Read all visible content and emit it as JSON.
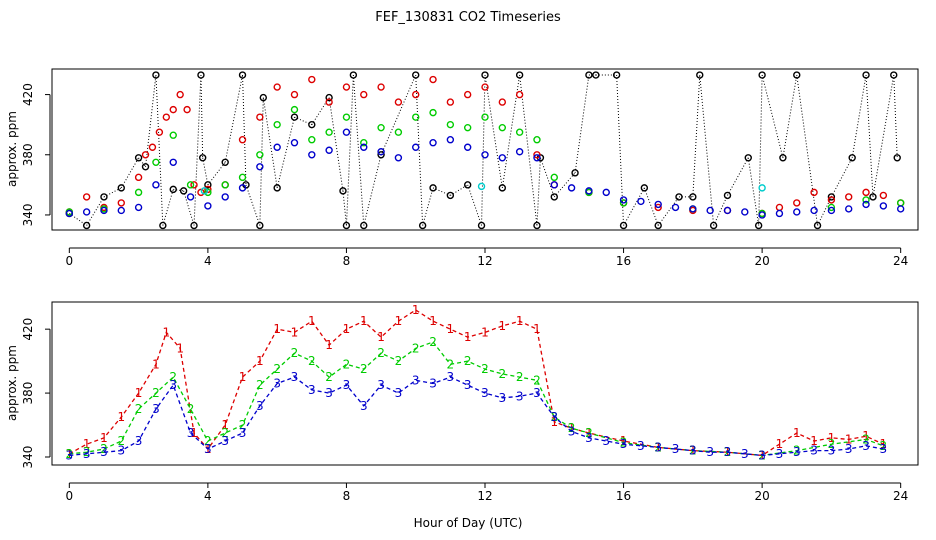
{
  "title": "FEF_130831  CO2 Timeseries",
  "colors": {
    "black": "#000000",
    "red": "#dd0000",
    "green": "#00cc00",
    "blue": "#0000cc",
    "cyan": "#00cccc"
  },
  "chart_data": [
    {
      "type": "scatter",
      "panel": "top",
      "ylabel": "approx. ppm",
      "xlim": [
        -0.5,
        24.5
      ],
      "ylim": [
        330,
        437
      ],
      "xticks": [
        "0",
        "4",
        "8",
        "12",
        "16",
        "20",
        "24"
      ],
      "yticks": [
        "340",
        "380",
        "420"
      ],
      "marker": "open circles; black points joined to next by dotted vertical lines",
      "series": [
        {
          "color": "black",
          "x": [
            0,
            0.5,
            1,
            1.5,
            2,
            2.2,
            2.5,
            2.7,
            3,
            3.3,
            3.6,
            3.8,
            3.85,
            4,
            4.5,
            5,
            5.1,
            5.5,
            5.6,
            6,
            6.5,
            7,
            7.5,
            7.9,
            8,
            8.2,
            8.5,
            9,
            10,
            10.2,
            10.5,
            11,
            11.5,
            11.9,
            12,
            12.5,
            13,
            13.5,
            13.6,
            14,
            14.6,
            15,
            15.2,
            15.8,
            16,
            16.6,
            17,
            17.6,
            18,
            18.2,
            18.6,
            19,
            19.6,
            19.9,
            20,
            20.6,
            21,
            21.6,
            22,
            22.6,
            23,
            23.2,
            23.8,
            23.9
          ],
          "y": [
            341,
            333,
            352,
            358,
            378,
            372,
            433,
            333,
            357,
            356,
            333,
            433,
            378,
            360,
            375,
            433,
            360,
            333,
            418,
            358,
            405,
            400,
            418,
            356,
            333,
            433,
            333,
            380,
            433,
            333,
            358,
            353,
            360,
            333,
            433,
            358,
            433,
            333,
            378,
            352,
            368,
            433,
            433,
            433,
            333,
            358,
            333,
            352,
            352,
            433,
            333,
            353,
            378,
            333,
            433,
            378,
            433,
            333,
            352,
            378,
            433,
            352,
            433,
            378
          ]
        },
        {
          "color": "red",
          "x": [
            0,
            0.5,
            1,
            1.5,
            2,
            2.2,
            2.4,
            2.6,
            2.8,
            3,
            3.2,
            3.4,
            3.6,
            3.8,
            4,
            4.5,
            5,
            5.5,
            6,
            6.5,
            7,
            7.5,
            8,
            8.5,
            9,
            9.5,
            10,
            10.5,
            11,
            11.5,
            12,
            12.5,
            13,
            13.5,
            14,
            15,
            16,
            17,
            18,
            19,
            20,
            20.5,
            21,
            21.5,
            22,
            22.5,
            23,
            23.5,
            24
          ],
          "y": [
            342,
            352,
            345,
            348,
            365,
            380,
            385,
            395,
            405,
            410,
            420,
            410,
            360,
            355,
            357,
            360,
            390,
            405,
            425,
            420,
            430,
            415,
            425,
            420,
            425,
            415,
            420,
            430,
            415,
            420,
            425,
            415,
            420,
            380,
            360,
            355,
            348,
            345,
            343,
            343,
            341,
            345,
            348,
            355,
            350,
            352,
            355,
            353,
            348
          ]
        },
        {
          "color": "green",
          "x": [
            0,
            1,
            2,
            2.5,
            3,
            3.5,
            4,
            4.5,
            5,
            5.5,
            6,
            6.5,
            7,
            7.5,
            8,
            8.5,
            9,
            9.5,
            10,
            10.5,
            11,
            11.5,
            12,
            12.5,
            13,
            13.5,
            14,
            15,
            16,
            18,
            20,
            22,
            23,
            24
          ],
          "y": [
            342,
            344,
            355,
            375,
            393,
            360,
            355,
            360,
            365,
            380,
            400,
            410,
            390,
            395,
            405,
            388,
            398,
            395,
            405,
            408,
            400,
            398,
            405,
            398,
            395,
            390,
            365,
            355,
            348,
            344,
            341,
            345,
            350,
            348
          ]
        },
        {
          "color": "blue",
          "x": [
            0,
            0.5,
            1,
            1.5,
            2,
            2.5,
            3,
            3.5,
            4,
            4.5,
            5,
            5.5,
            6,
            6.5,
            7,
            7.5,
            8,
            8.5,
            9,
            9.5,
            10,
            10.5,
            11,
            11.5,
            12,
            12.5,
            13,
            13.5,
            14,
            14.5,
            15,
            15.5,
            16,
            16.5,
            17,
            17.5,
            18,
            18.5,
            19,
            19.5,
            20,
            20.5,
            21,
            21.5,
            22,
            22.5,
            23,
            23.5,
            24
          ],
          "y": [
            341,
            342,
            343,
            343,
            345,
            360,
            375,
            352,
            346,
            352,
            358,
            372,
            385,
            388,
            380,
            383,
            395,
            385,
            382,
            378,
            385,
            388,
            390,
            385,
            380,
            378,
            382,
            378,
            360,
            358,
            356,
            355,
            350,
            349,
            347,
            345,
            344,
            343,
            343,
            342,
            340,
            341,
            342,
            343,
            343,
            344,
            347,
            346,
            344
          ]
        },
        {
          "color": "cyan",
          "x": [
            3.9,
            11.9,
            20
          ],
          "y": [
            356,
            359,
            358
          ]
        }
      ]
    },
    {
      "type": "line",
      "panel": "bottom",
      "xlabel": "Hour of Day (UTC)",
      "ylabel": "approx. ppm",
      "xlim": [
        -0.5,
        24.5
      ],
      "ylim": [
        335,
        437
      ],
      "xticks": [
        "0",
        "4",
        "8",
        "12",
        "16",
        "20",
        "24"
      ],
      "yticks": [
        "340",
        "380",
        "420"
      ],
      "marker": "numeral glyphs on dashed lines",
      "series": [
        {
          "label": "1",
          "color": "red",
          "x": [
            0,
            0.5,
            1,
            1.5,
            2,
            2.5,
            2.8,
            3.2,
            3.6,
            4,
            4.5,
            5,
            5.5,
            6,
            6.5,
            7,
            7.5,
            8,
            8.5,
            9,
            9.5,
            10,
            10.5,
            11,
            11.5,
            12,
            12.5,
            13,
            13.5,
            14,
            14.5,
            15,
            16,
            17,
            18,
            19,
            20,
            20.5,
            21,
            21.5,
            22,
            22.5,
            23,
            23.5
          ],
          "y": [
            342,
            348,
            352,
            365,
            380,
            398,
            418,
            408,
            355,
            345,
            360,
            390,
            400,
            420,
            418,
            425,
            410,
            420,
            425,
            415,
            425,
            432,
            425,
            420,
            415,
            418,
            422,
            425,
            420,
            362,
            358,
            355,
            350,
            346,
            344,
            343,
            341,
            348,
            355,
            350,
            352,
            351,
            353,
            348
          ]
        },
        {
          "label": "2",
          "color": "green",
          "x": [
            0,
            0.5,
            1,
            1.5,
            2,
            2.5,
            3,
            3.5,
            4,
            4.5,
            5,
            5.5,
            6,
            6.5,
            7,
            7.5,
            8,
            8.5,
            9,
            9.5,
            10,
            10.5,
            11,
            11.5,
            12,
            12.5,
            13,
            13.5,
            14,
            14.5,
            15,
            16,
            17,
            18,
            19,
            20,
            21,
            22,
            23,
            23.5
          ],
          "y": [
            342,
            343,
            345,
            350,
            370,
            380,
            390,
            370,
            350,
            355,
            360,
            385,
            395,
            405,
            400,
            390,
            398,
            395,
            405,
            400,
            408,
            412,
            398,
            400,
            395,
            392,
            390,
            388,
            365,
            358,
            355,
            349,
            346,
            344,
            343,
            341,
            344,
            348,
            351,
            347
          ]
        },
        {
          "label": "3",
          "color": "blue",
          "x": [
            0,
            0.5,
            1,
            1.5,
            2,
            2.5,
            3,
            3.5,
            4,
            4.5,
            5,
            5.5,
            6,
            6.5,
            7,
            7.5,
            8,
            8.5,
            9,
            9.5,
            10,
            10.5,
            11,
            11.5,
            12,
            12.5,
            13,
            13.5,
            14,
            14.5,
            15,
            15.5,
            16,
            16.5,
            17,
            17.5,
            18,
            18.5,
            19,
            19.5,
            20,
            20.5,
            21,
            21.5,
            22,
            22.5,
            23,
            23.5
          ],
          "y": [
            341,
            342,
            343,
            344,
            350,
            370,
            385,
            355,
            345,
            350,
            355,
            372,
            386,
            390,
            382,
            380,
            385,
            372,
            385,
            380,
            388,
            386,
            390,
            385,
            380,
            377,
            378,
            380,
            365,
            356,
            352,
            350,
            348,
            347,
            346,
            345,
            344,
            343,
            343,
            342,
            341,
            342,
            343,
            344,
            344,
            345,
            347,
            345
          ]
        }
      ]
    }
  ]
}
